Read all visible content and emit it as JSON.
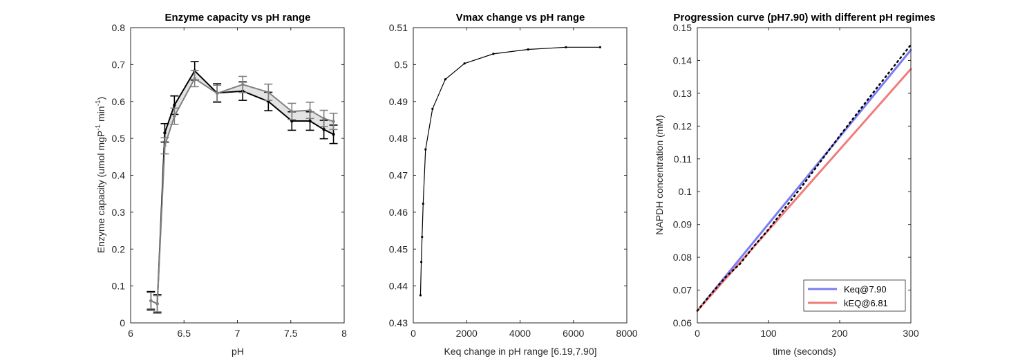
{
  "chart_data": [
    {
      "type": "line",
      "title": "Enzyme capacity vs pH range",
      "xlabel": "pH",
      "ylabel_main": "Enzyme capacity (umol mgP",
      "ylabel_sup1": "-1",
      "ylabel_mid": " min",
      "ylabel_sup2": "-1",
      "ylabel_end": ")",
      "xlim": [
        6,
        8
      ],
      "ylim": [
        0,
        0.8
      ],
      "xticks": [
        "6",
        "6.5",
        "7",
        "7.5",
        "8"
      ],
      "yticks": [
        "0",
        "0.1",
        "0.2",
        "0.3",
        "0.4",
        "0.5",
        "0.6",
        "0.7",
        "0.8"
      ],
      "shaded_band": true,
      "series": [
        {
          "color": "#000000",
          "x": [
            6.19,
            6.25,
            6.32,
            6.41,
            6.6,
            6.81,
            7.05,
            7.29,
            7.51,
            7.68,
            7.81,
            7.9
          ],
          "y": [
            0.06,
            0.052,
            0.515,
            0.59,
            0.683,
            0.623,
            0.628,
            0.6,
            0.547,
            0.547,
            0.524,
            0.511
          ],
          "err": [
            0.025,
            0.025,
            0.025,
            0.025,
            0.025,
            0.025,
            0.025,
            0.025,
            0.025,
            0.025,
            0.025,
            0.025
          ]
        },
        {
          "color": "#808080",
          "x": [
            6.19,
            6.25,
            6.32,
            6.41,
            6.6,
            6.81,
            7.05,
            7.29,
            7.51,
            7.68,
            7.81,
            7.9
          ],
          "y": [
            0.06,
            0.052,
            0.48,
            0.56,
            0.662,
            0.622,
            0.646,
            0.625,
            0.573,
            0.576,
            0.554,
            0.546
          ],
          "err": [
            0.022,
            0.022,
            0.022,
            0.022,
            0.022,
            0.022,
            0.022,
            0.022,
            0.022,
            0.022,
            0.022,
            0.022
          ]
        }
      ]
    },
    {
      "type": "line",
      "title": "Vmax change vs pH range",
      "xlabel": "Keq change in pH range [6.19,7.90]",
      "ylabel": "",
      "xlim": [
        0,
        8000
      ],
      "ylim": [
        0.43,
        0.51
      ],
      "xticks": [
        "0",
        "2000",
        "4000",
        "6000",
        "8000"
      ],
      "yticks": [
        "0.43",
        "0.44",
        "0.45",
        "0.46",
        "0.47",
        "0.48",
        "0.49",
        "0.5",
        "0.51"
      ],
      "series": [
        {
          "color": "#000000",
          "x": [
            270,
            300,
            330,
            370,
            460,
            720,
            1200,
            1920,
            3000,
            4300,
            5720,
            7000
          ],
          "y": [
            0.4375,
            0.4465,
            0.4533,
            0.4623,
            0.477,
            0.488,
            0.496,
            0.5003,
            0.5029,
            0.5041,
            0.5047,
            0.5047
          ]
        }
      ]
    },
    {
      "type": "line",
      "title": "Progression curve (pH7.90) with different pH regimes",
      "xlabel": "time (seconds)",
      "ylabel": "NAPDH concentration (mM)",
      "xlim": [
        0,
        300
      ],
      "ylim": [
        0.06,
        0.15
      ],
      "xticks": [
        "0",
        "100",
        "200",
        "300"
      ],
      "yticks": [
        "0.06",
        "0.07",
        "0.08",
        "0.09",
        "0.1",
        "0.11",
        "0.12",
        "0.13",
        "0.14",
        "0.15"
      ],
      "legend_position": "bottom-right",
      "series": [
        {
          "name": "Keq@7.90",
          "color": "#7b7bf5",
          "x": [
            0,
            300
          ],
          "y": [
            0.0637,
            0.1432
          ]
        },
        {
          "name": "kEQ@6.81",
          "color": "#f27b7b",
          "x": [
            0,
            300
          ],
          "y": [
            0.0637,
            0.1374
          ]
        },
        {
          "color": "#000000",
          "dotted": true,
          "x": [
            0,
            20,
            40,
            60,
            80,
            100,
            150,
            200,
            250,
            300
          ],
          "y": [
            0.0637,
            0.069,
            0.074,
            0.078,
            0.0835,
            0.0885,
            0.1025,
            0.117,
            0.131,
            0.1448
          ]
        }
      ]
    }
  ]
}
